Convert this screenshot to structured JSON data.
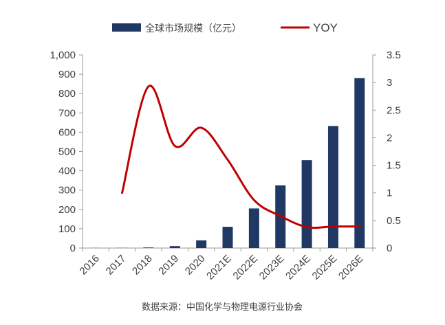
{
  "chart_data": {
    "type": "bar",
    "title": "",
    "categories": [
      "2016",
      "2017",
      "2018",
      "2019",
      "2020",
      "2021E",
      "2022E",
      "2023E",
      "2024E",
      "2025E",
      "2026E"
    ],
    "series": [
      {
        "name": "全球市场规模（亿元）",
        "type": "bar",
        "axis": "left",
        "color": "#1f3864",
        "values": [
          0.5,
          1,
          3,
          10,
          40,
          110,
          205,
          325,
          455,
          632,
          880
        ]
      },
      {
        "name": "YOY",
        "type": "line",
        "axis": "right",
        "color": "#c00000",
        "values": [
          null,
          1.0,
          2.93,
          1.85,
          2.18,
          1.6,
          0.87,
          0.58,
          0.38,
          0.39,
          0.39
        ]
      }
    ],
    "y_left": {
      "min": 0,
      "max": 1000,
      "step": 100,
      "ticks": [
        "0",
        "100",
        "200",
        "300",
        "400",
        "500",
        "600",
        "700",
        "800",
        "900",
        "1,000"
      ]
    },
    "y_right": {
      "min": 0,
      "max": 3.5,
      "step": 0.5,
      "ticks": [
        "0",
        "0.5",
        "1",
        "1.5",
        "2",
        "2.5",
        "3",
        "3.5"
      ]
    },
    "legend_position": "top-center",
    "grid": false,
    "source": "数据来源：中国化学与物理电源行业协会"
  }
}
